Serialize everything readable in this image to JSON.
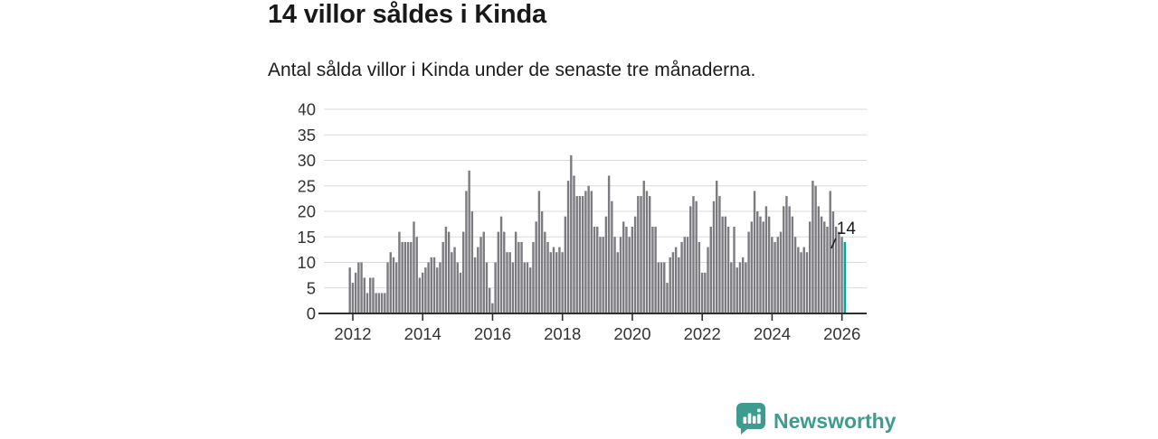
{
  "header": {
    "title": "14 villor såldes i Kinda",
    "subtitle": "Antal sålda villor i Kinda under de senaste tre månaderna."
  },
  "chart_data": {
    "type": "bar",
    "title": "14 villor såldes i Kinda",
    "subtitle": "Antal sålda villor i Kinda under de senaste tre månaderna.",
    "x_start": "2012-01",
    "x_frequency": "monthly",
    "values": [
      9,
      6,
      8,
      10,
      10,
      7,
      4,
      7,
      7,
      4,
      4,
      4,
      4,
      10,
      12,
      11,
      10,
      16,
      14,
      14,
      14,
      14,
      18,
      15,
      7,
      8,
      9,
      10,
      11,
      11,
      9,
      10,
      14,
      17,
      16,
      12,
      13,
      10,
      8,
      16,
      24,
      28,
      20,
      11,
      13,
      15,
      16,
      10,
      5,
      2,
      10,
      16,
      19,
      16,
      12,
      12,
      10,
      16,
      14,
      14,
      10,
      10,
      9,
      14,
      18,
      24,
      20,
      16,
      14,
      12,
      13,
      12,
      13,
      12,
      19,
      26,
      31,
      27,
      23,
      23,
      23,
      24,
      25,
      24,
      17,
      17,
      15,
      15,
      19,
      27,
      22,
      15,
      12,
      15,
      18,
      17,
      15,
      17,
      19,
      23,
      23,
      26,
      24,
      23,
      17,
      17,
      10,
      10,
      10,
      6,
      11,
      12,
      13,
      11,
      14,
      15,
      15,
      21,
      23,
      22,
      14,
      8,
      8,
      13,
      17,
      22,
      26,
      23,
      19,
      19,
      17,
      10,
      17,
      9,
      10,
      11,
      10,
      16,
      18,
      24,
      20,
      19,
      18,
      21,
      19,
      15,
      14,
      15,
      16,
      21,
      23,
      21,
      19,
      15,
      13,
      12,
      13,
      12,
      18,
      26,
      25,
      21,
      19,
      18,
      17,
      24,
      20,
      17,
      16,
      15,
      14
    ],
    "x_tick_labels": [
      "2012",
      "2014",
      "2016",
      "2018",
      "2020",
      "2022",
      "2024",
      "2026"
    ],
    "y_ticks": [
      0,
      5,
      10,
      15,
      20,
      25,
      30,
      35,
      40
    ],
    "ylim": [
      0,
      40
    ],
    "grid": true,
    "legend": "none",
    "bar_color": "#7b7b80",
    "highlight_color": "#00a89b",
    "grid_color": "#dadada",
    "axis_color": "#2f2f2f",
    "tick_label_color": "#333333",
    "annotation": {
      "text": "14",
      "target": "last-bar",
      "value": 14
    }
  },
  "footer": {
    "brand": "Newsworthy",
    "logo_color": "#3d9b8f",
    "logo_glyph_color": "#ffffff"
  }
}
